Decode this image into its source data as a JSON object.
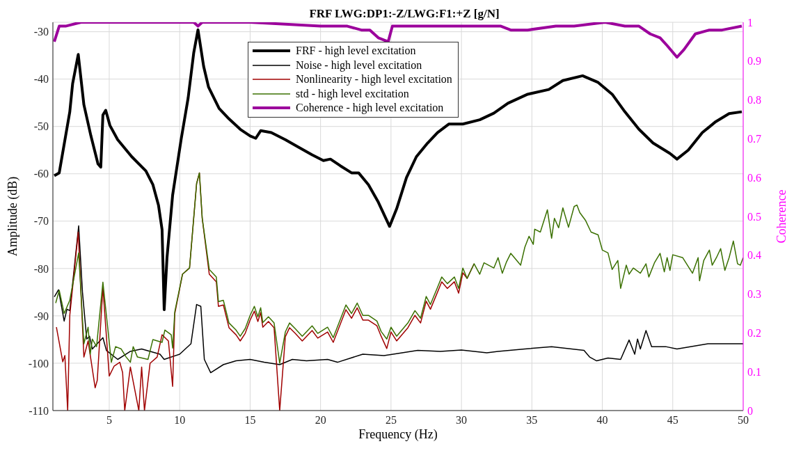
{
  "chart_data": {
    "type": "line",
    "title": "FRF LWG:DP1:-Z/LWG:F1:+Z [g/N]",
    "xlabel": "Frequency (Hz)",
    "ylabel": "Amplitude (dB)",
    "y2label": "Coherence",
    "xlim": [
      1,
      50
    ],
    "xticks": [
      5,
      10,
      15,
      20,
      25,
      30,
      35,
      40,
      45,
      50
    ],
    "ylim": [
      -110,
      -28
    ],
    "yticks": [
      -110,
      -100,
      -90,
      -80,
      -70,
      -60,
      -50,
      -40,
      -30
    ],
    "y2lim": [
      0,
      1
    ],
    "y2ticks": [
      0,
      0.1,
      0.2,
      0.3,
      0.4,
      0.5,
      0.6,
      0.7,
      0.8,
      0.9,
      1
    ],
    "grid": true,
    "legend": "top",
    "series": [
      {
        "name": "FRF - high level excitation",
        "color": "#000000",
        "x": [
          1.1,
          1.45,
          2.2,
          2.4,
          2.8,
          3.2,
          3.7,
          4.2,
          4.4,
          4.55,
          4.75,
          5.05,
          5.6,
          6.6,
          7.6,
          8.1,
          8.5,
          8.75,
          8.9,
          9.1,
          9.5,
          10.1,
          10.6,
          11,
          11.3,
          11.7,
          12.05,
          12.8,
          13.5,
          14.3,
          15,
          15.4,
          15.75,
          16.5,
          17.5,
          18.5,
          19.4,
          20.2,
          20.7,
          21.4,
          22.2,
          22.7,
          23.4,
          24.1,
          24.9,
          25.4,
          26.1,
          26.8,
          27.6,
          28.3,
          29.1,
          30.1,
          31.3,
          32.3,
          33.3,
          34.7,
          36.2,
          37.2,
          38.6,
          39.7,
          40.7,
          41.6,
          42.6,
          43.6,
          44.8,
          45.3,
          46.1,
          47.1,
          48,
          49,
          49.9
        ],
        "values": [
          -60.4,
          -59.8,
          -46.9,
          -41,
          -34.8,
          -45.4,
          -52,
          -57.9,
          -58.6,
          -47.6,
          -46.6,
          -49.8,
          -52.8,
          -56.4,
          -59.4,
          -62.3,
          -66.7,
          -71.8,
          -88.7,
          -77.7,
          -64.5,
          -52.8,
          -44,
          -34.4,
          -29.6,
          -37.3,
          -41.7,
          -46.2,
          -48.4,
          -50.6,
          -52,
          -52.5,
          -50.9,
          -51.3,
          -52.8,
          -54.5,
          -56,
          -57.2,
          -56.9,
          -58.3,
          -59.8,
          -59.8,
          -62.3,
          -66,
          -71.1,
          -67.4,
          -60.8,
          -56.4,
          -53.5,
          -51.3,
          -49.5,
          -49.5,
          -48.6,
          -47.2,
          -45.1,
          -43.2,
          -42.2,
          -40.3,
          -39.3,
          -40.7,
          -43.2,
          -46.9,
          -50.6,
          -53.5,
          -55.7,
          -56.9,
          -55,
          -51.3,
          -49.1,
          -47.3,
          -46.9
        ]
      },
      {
        "name": "Noise - high level excitation",
        "color": "#000000",
        "x": [
          1.1,
          1.4,
          1.8,
          2,
          2.2,
          2.83,
          3.1,
          3.4,
          3.6,
          3.8,
          4.55,
          4.8,
          5.6,
          6.5,
          7.3,
          8.6,
          8.9,
          10,
          10.8,
          11.2,
          11.5,
          11.75,
          12.2,
          13.1,
          14,
          15,
          16,
          17.1,
          18,
          19,
          20.5,
          21.2,
          23,
          24.5,
          26.9,
          28.5,
          30,
          31.8,
          32.6,
          34.5,
          36.4,
          38.7,
          39.1,
          39.6,
          40.4,
          41.3,
          41.9,
          42.3,
          42.5,
          42.7,
          43.1,
          43.5,
          44.5,
          45.3,
          47.5,
          50
        ],
        "values": [
          -86,
          -84.5,
          -91.1,
          -88.6,
          -88.9,
          -71,
          -85,
          -94.9,
          -94.3,
          -97,
          -94.6,
          -97.3,
          -99.2,
          -97.5,
          -97,
          -98.1,
          -99.2,
          -98.1,
          -95.9,
          -87.6,
          -88,
          -99.2,
          -102,
          -100.3,
          -99.5,
          -99.2,
          -99.8,
          -100.3,
          -99.2,
          -99.5,
          -99.2,
          -99.8,
          -98.1,
          -98.4,
          -97.3,
          -97.5,
          -97.2,
          -97.8,
          -97.5,
          -97,
          -96.5,
          -97.3,
          -98.7,
          -99.5,
          -98.9,
          -99.2,
          -95.1,
          -98.1,
          -94.9,
          -97,
          -93.1,
          -96.5,
          -96.5,
          -97,
          -95.9,
          -95.9
        ]
      },
      {
        "name": "Nonlinearity - high level excitation",
        "color": "#a00000",
        "x": [
          1.25,
          1.7,
          1.85,
          2.05,
          2.2,
          2.8,
          3.2,
          3.5,
          4,
          4.15,
          4.55,
          5,
          5.35,
          5.75,
          5.95,
          6.1,
          6.5,
          7.1,
          7.3,
          7.5,
          7.9,
          8.4,
          8.75,
          9.2,
          9.5,
          9.65,
          10.2,
          10.7,
          11.2,
          11.4,
          11.6,
          12.1,
          12.6,
          12.75,
          13.1,
          13.5,
          14,
          14.3,
          14.65,
          15,
          15.3,
          15.55,
          15.75,
          15.9,
          16.3,
          16.7,
          17.1,
          17.5,
          17.8,
          18.2,
          18.7,
          19.4,
          19.8,
          20.5,
          20.9,
          21.8,
          22.2,
          22.6,
          23,
          23.4,
          24,
          24.3,
          24.7,
          25,
          25.4,
          26.2,
          26.7,
          27.1,
          27.5,
          27.8,
          28.3,
          28.6,
          29,
          29.5,
          29.8,
          30.1,
          30.4,
          30.9
        ],
        "values": [
          -92.4,
          -99.7,
          -98.4,
          -110,
          -89.9,
          -72.3,
          -98.7,
          -95.3,
          -105.2,
          -103.6,
          -84,
          -102.7,
          -100.6,
          -99.8,
          -102,
          -110,
          -100.8,
          -110,
          -100.8,
          -110,
          -100,
          -98.7,
          -94,
          -95.3,
          -104.9,
          -89.6,
          -81.2,
          -79.9,
          -62.1,
          -59.8,
          -69.4,
          -81.2,
          -82.8,
          -88,
          -87.7,
          -92.5,
          -94,
          -95.3,
          -93.7,
          -90.9,
          -89,
          -91.2,
          -89.3,
          -92.4,
          -91.2,
          -92.5,
          -110,
          -94.4,
          -92.5,
          -93.7,
          -95.3,
          -93.1,
          -94.7,
          -93.4,
          -95.6,
          -88.7,
          -90.5,
          -88.3,
          -90.9,
          -90.9,
          -92.1,
          -94.3,
          -96.9,
          -93.4,
          -95.3,
          -92.5,
          -89.9,
          -91.5,
          -86.9,
          -88.6,
          -85,
          -82.8,
          -84.2,
          -82.8,
          -85.2,
          -80.9,
          -82.1,
          -79
        ]
      },
      {
        "name": "std - high level excitation",
        "color": "#3a7000",
        "x": [
          1.2,
          1.45,
          1.8,
          2.2,
          2.83,
          3.2,
          3.5,
          3.65,
          3.8,
          4.1,
          4.55,
          5.15,
          5.45,
          5.85,
          6.2,
          6.5,
          6.7,
          7,
          7.75,
          8.1,
          8.75,
          8.95,
          9.4,
          9.5,
          9.65,
          10.2,
          10.7,
          11.2,
          11.4,
          11.6,
          12.1,
          12.6,
          12.75,
          13.1,
          13.5,
          14,
          14.3,
          14.65,
          15,
          15.3,
          15.55,
          15.75,
          15.9,
          16.3,
          16.7,
          17.1,
          17.5,
          17.8,
          18.2,
          18.7,
          19.4,
          19.8,
          20.5,
          20.9,
          21.8,
          22.2,
          22.6,
          23,
          23.4,
          24,
          24.3,
          24.7,
          25,
          25.4,
          26.2,
          26.7,
          27.1,
          27.5,
          27.8,
          28.3,
          28.6,
          29,
          29.5,
          29.8,
          30.1,
          30.4,
          30.9,
          31.3,
          31.6,
          32.3,
          32.6,
          32.9,
          33.2,
          33.5,
          34.2,
          34.5,
          34.8,
          35.1,
          35.2,
          35.6,
          36.1,
          36.4,
          36.6,
          36.9,
          37.2,
          37.6,
          38,
          38.2,
          38.4,
          38.8,
          39.2,
          39.7,
          40,
          40.4,
          40.7,
          41.1,
          41.3,
          41.7,
          41.9,
          42.2,
          42.7,
          43.1,
          43.3,
          43.7,
          44.1,
          44.4,
          44.6,
          44.8,
          45,
          45.7,
          46.4,
          46.8,
          46.9,
          47.2,
          47.6,
          47.8,
          48.1,
          48.4,
          48.7,
          49,
          49.3,
          49.6,
          49.8,
          50
        ],
        "values": [
          -87.3,
          -84.6,
          -89.5,
          -86.7,
          -76.7,
          -95.9,
          -92.4,
          -98.1,
          -94.9,
          -96.5,
          -82.9,
          -99.8,
          -96.5,
          -97,
          -98.7,
          -99.8,
          -96.5,
          -98.7,
          -99.2,
          -95,
          -95.6,
          -93,
          -94,
          -96.8,
          -89.2,
          -81.2,
          -79.9,
          -62.1,
          -59.8,
          -69.4,
          -80.2,
          -81.8,
          -87,
          -86.7,
          -91.5,
          -93,
          -94.3,
          -92.7,
          -89.9,
          -88,
          -90.2,
          -88.3,
          -91.4,
          -90.2,
          -91.5,
          -100,
          -93.4,
          -91.5,
          -92.7,
          -94.3,
          -92.1,
          -93.7,
          -92.4,
          -94.6,
          -87.7,
          -89.5,
          -87.3,
          -89.9,
          -89.9,
          -91.1,
          -93.3,
          -94.9,
          -92.4,
          -94.3,
          -91.5,
          -88.9,
          -90.5,
          -85.9,
          -87.6,
          -84,
          -81.8,
          -83.2,
          -81.8,
          -84.2,
          -79.9,
          -82.1,
          -79,
          -81.2,
          -78.8,
          -79.9,
          -77.7,
          -81,
          -78.6,
          -76.8,
          -79.3,
          -75.5,
          -73.2,
          -74.9,
          -71.7,
          -72.3,
          -67.6,
          -73.6,
          -69.4,
          -71.4,
          -67.2,
          -71.3,
          -66.9,
          -66.6,
          -68.2,
          -69.8,
          -72.3,
          -72.9,
          -76.1,
          -76.7,
          -80.2,
          -78.3,
          -84.2,
          -79.3,
          -81.2,
          -79.9,
          -81,
          -79,
          -81.8,
          -78.8,
          -76.8,
          -80.7,
          -77.7,
          -80.4,
          -77.1,
          -77.7,
          -81,
          -77.7,
          -82.6,
          -78.3,
          -76.1,
          -79.3,
          -77.7,
          -75.8,
          -80.4,
          -77.7,
          -74.2,
          -79,
          -79.3,
          -77.7
        ]
      },
      {
        "name": "Coherence - high level excitation",
        "color": "#9c009c",
        "axis": "y2",
        "x": [
          1.1,
          1.45,
          1.9,
          3,
          5,
          8,
          11,
          11.3,
          11.6,
          15,
          20,
          21.9,
          22.9,
          23.5,
          24.1,
          24.8,
          25.1,
          25.9,
          29.3,
          31,
          32.8,
          33.5,
          34.7,
          36.7,
          38,
          40.2,
          41.6,
          42.6,
          43.4,
          44.1,
          44.6,
          45.3,
          45.8,
          46.6,
          47.6,
          48.5,
          49.9
        ],
        "values": [
          0.95,
          0.99,
          0.99,
          1,
          1,
          1,
          1,
          0.99,
          1,
          1,
          0.99,
          0.99,
          0.98,
          0.98,
          0.96,
          0.95,
          0.99,
          0.99,
          0.99,
          0.99,
          0.99,
          0.98,
          0.98,
          0.99,
          0.99,
          1,
          0.99,
          0.99,
          0.97,
          0.96,
          0.94,
          0.91,
          0.93,
          0.97,
          0.98,
          0.98,
          0.99
        ]
      }
    ]
  }
}
